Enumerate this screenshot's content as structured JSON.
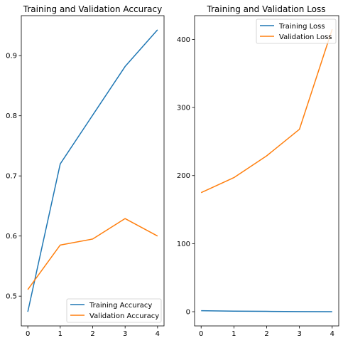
{
  "chart_data": [
    {
      "type": "line",
      "title": "Training and Validation Accuracy",
      "xlabel": "",
      "ylabel": "",
      "x": [
        0,
        1,
        2,
        3,
        4
      ],
      "xlim": [
        -0.2,
        4.2
      ],
      "ylim": [
        0.4505,
        0.9665
      ],
      "x_ticks": [
        "0",
        "1",
        "2",
        "3",
        "4"
      ],
      "y_ticks": [
        "0.5",
        "0.6",
        "0.7",
        "0.8",
        "0.9"
      ],
      "series": [
        {
          "name": "Training Accuracy",
          "color": "#1f77b4",
          "values": [
            0.474,
            0.72,
            0.801,
            0.882,
            0.943
          ]
        },
        {
          "name": "Validation Accuracy",
          "color": "#ff7f0e",
          "values": [
            0.511,
            0.585,
            0.595,
            0.629,
            0.6
          ]
        }
      ],
      "legend_position": "lower-right",
      "grid": false
    },
    {
      "type": "line",
      "title": "Training and Validation Loss",
      "xlabel": "",
      "ylabel": "",
      "x": [
        0,
        1,
        2,
        3,
        4
      ],
      "xlim": [
        -0.2,
        4.2
      ],
      "ylim": [
        -20.9,
        435.0
      ],
      "x_ticks": [
        "0",
        "1",
        "2",
        "3",
        "4"
      ],
      "y_ticks": [
        "0",
        "100",
        "200",
        "300",
        "400"
      ],
      "series": [
        {
          "name": "Training Loss",
          "color": "#1f77b4",
          "values": [
            1.5,
            0.8,
            0.5,
            0.2,
            0.0
          ]
        },
        {
          "name": "Validation Loss",
          "color": "#ff7f0e",
          "values": [
            175,
            197,
            229,
            268,
            415
          ]
        }
      ],
      "legend_position": "upper-right",
      "grid": false
    }
  ]
}
